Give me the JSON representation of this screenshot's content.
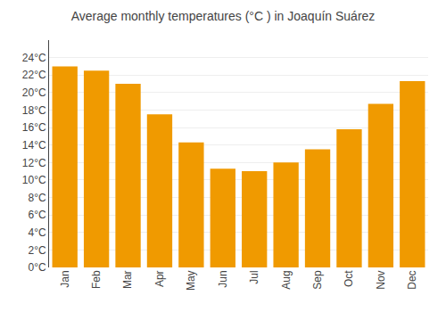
{
  "chart_data": {
    "type": "bar",
    "title": "Average monthly temperatures (°C ) in Joaquín Suárez",
    "categories": [
      "Jan",
      "Feb",
      "Mar",
      "Apr",
      "May",
      "Jun",
      "Jul",
      "Aug",
      "Sep",
      "Oct",
      "Nov",
      "Dec"
    ],
    "values": [
      23.0,
      22.5,
      21.0,
      17.5,
      14.3,
      11.3,
      11.0,
      12.0,
      13.5,
      15.8,
      18.7,
      21.3
    ],
    "color": "#F09A00",
    "ylim": [
      0,
      26
    ],
    "yticks": [
      {
        "value": 0,
        "label": "0°C"
      },
      {
        "value": 2,
        "label": "2°C"
      },
      {
        "value": 4,
        "label": "4°C"
      },
      {
        "value": 6,
        "label": "6°C"
      },
      {
        "value": 8,
        "label": "8°C"
      },
      {
        "value": 10,
        "label": "10°C"
      },
      {
        "value": 12,
        "label": "12°C"
      },
      {
        "value": 14,
        "label": "14°C"
      },
      {
        "value": 16,
        "label": "16°C"
      },
      {
        "value": 18,
        "label": "18°C"
      },
      {
        "value": 20,
        "label": "20°C"
      },
      {
        "value": 22,
        "label": "22°C"
      },
      {
        "value": 24,
        "label": "24°C"
      }
    ],
    "grid": true
  }
}
